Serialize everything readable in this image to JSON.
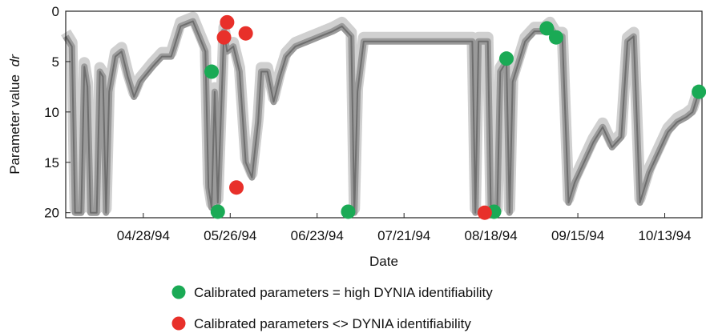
{
  "chart_data": {
    "type": "scatter",
    "xlabel": "Date",
    "ylabel": "Parameter value",
    "ylabel_symbol": "dr",
    "x_range": [
      "1994-04-03",
      "1994-10-25"
    ],
    "y_range": [
      0,
      20.5
    ],
    "y_inverted": true,
    "x_ticks": [
      {
        "date": "1994-04-28",
        "label": "04/28/94"
      },
      {
        "date": "1994-05-26",
        "label": "05/26/94"
      },
      {
        "date": "1994-06-23",
        "label": "06/23/94"
      },
      {
        "date": "1994-07-21",
        "label": "07/21/94"
      },
      {
        "date": "1994-08-18",
        "label": "08/18/94"
      },
      {
        "date": "1994-09-15",
        "label": "09/15/94"
      },
      {
        "date": "1994-10-13",
        "label": "10/13/94"
      }
    ],
    "y_ticks": [
      0,
      5,
      10,
      15,
      20
    ],
    "identifiability_band": {
      "description": "DYNIA identifiability shading (gray band)",
      "color": "#6e6e6e",
      "points": [
        [
          "1994-04-03",
          2.5
        ],
        [
          "1994-04-05",
          3.5
        ],
        [
          "1994-04-06",
          20.0
        ],
        [
          "1994-04-08",
          20.0
        ],
        [
          "1994-04-09",
          5.5
        ],
        [
          "1994-04-10",
          7.5
        ],
        [
          "1994-04-11",
          20.0
        ],
        [
          "1994-04-13",
          20.0
        ],
        [
          "1994-04-14",
          6.0
        ],
        [
          "1994-04-15",
          6.5
        ],
        [
          "1994-04-16",
          20.0
        ],
        [
          "1994-04-17",
          8.0
        ],
        [
          "1994-04-19",
          4.5
        ],
        [
          "1994-04-21",
          4.0
        ],
        [
          "1994-04-23",
          6.5
        ],
        [
          "1994-04-25",
          8.5
        ],
        [
          "1994-04-27",
          7.0
        ],
        [
          "1994-05-01",
          5.5
        ],
        [
          "1994-05-04",
          4.5
        ],
        [
          "1994-05-07",
          4.5
        ],
        [
          "1994-05-10",
          1.5
        ],
        [
          "1994-05-14",
          1.0
        ],
        [
          "1994-05-18",
          4.0
        ],
        [
          "1994-05-19",
          17.5
        ],
        [
          "1994-05-20",
          19.5
        ],
        [
          "1994-05-21",
          8.0
        ],
        [
          "1994-05-22",
          19.0
        ],
        [
          "1994-05-24",
          2.0
        ],
        [
          "1994-05-25",
          4.0
        ],
        [
          "1994-05-27",
          3.5
        ],
        [
          "1994-05-29",
          6.0
        ],
        [
          "1994-05-31",
          15.0
        ],
        [
          "1994-06-02",
          16.5
        ],
        [
          "1994-06-04",
          11.0
        ],
        [
          "1994-06-05",
          6.0
        ],
        [
          "1994-06-07",
          6.0
        ],
        [
          "1994-06-09",
          9.0
        ],
        [
          "1994-06-11",
          6.5
        ],
        [
          "1994-06-13",
          4.5
        ],
        [
          "1994-06-16",
          3.5
        ],
        [
          "1994-06-20",
          3.0
        ],
        [
          "1994-06-24",
          2.5
        ],
        [
          "1994-06-28",
          2.0
        ],
        [
          "1994-07-01",
          1.5
        ],
        [
          "1994-07-04",
          2.5
        ],
        [
          "1994-07-05",
          20.0
        ],
        [
          "1994-07-06",
          8.0
        ],
        [
          "1994-07-08",
          3.0
        ],
        [
          "1994-07-12",
          3.0
        ],
        [
          "1994-07-20",
          3.0
        ],
        [
          "1994-07-31",
          3.0
        ],
        [
          "1994-08-08",
          3.0
        ],
        [
          "1994-08-12",
          3.0
        ],
        [
          "1994-08-13",
          20.0
        ],
        [
          "1994-08-14",
          3.0
        ],
        [
          "1994-08-17",
          3.0
        ],
        [
          "1994-08-18",
          20.0
        ],
        [
          "1994-08-20",
          20.0
        ],
        [
          "1994-08-21",
          6.0
        ],
        [
          "1994-08-23",
          5.0
        ],
        [
          "1994-08-24",
          20.0
        ],
        [
          "1994-08-25",
          7.0
        ],
        [
          "1994-08-29",
          3.0
        ],
        [
          "1994-09-01",
          2.0
        ],
        [
          "1994-09-04",
          2.0
        ],
        [
          "1994-09-06",
          1.5
        ],
        [
          "1994-09-08",
          2.5
        ],
        [
          "1994-09-10",
          2.5
        ],
        [
          "1994-09-12",
          19.0
        ],
        [
          "1994-09-14",
          17.0
        ],
        [
          "1994-09-17",
          15.0
        ],
        [
          "1994-09-20",
          13.0
        ],
        [
          "1994-09-23",
          11.5
        ],
        [
          "1994-09-26",
          13.5
        ],
        [
          "1994-09-29",
          12.5
        ],
        [
          "1994-10-01",
          3.0
        ],
        [
          "1994-10-03",
          2.5
        ],
        [
          "1994-10-05",
          19.0
        ],
        [
          "1994-10-08",
          16.0
        ],
        [
          "1994-10-11",
          14.0
        ],
        [
          "1994-10-14",
          12.0
        ],
        [
          "1994-10-17",
          11.0
        ],
        [
          "1994-10-20",
          10.5
        ],
        [
          "1994-10-22",
          10.0
        ],
        [
          "1994-10-24",
          8.0
        ]
      ]
    },
    "series": [
      {
        "name": "Calibrated parameters = high DYNIA identifiability",
        "color": "#1aaa55",
        "points": [
          {
            "x": "1994-05-20",
            "y": 6.0
          },
          {
            "x": "1994-05-22",
            "y": 19.9
          },
          {
            "x": "1994-07-03",
            "y": 19.9
          },
          {
            "x": "1994-08-19",
            "y": 19.9
          },
          {
            "x": "1994-08-23",
            "y": 4.7
          },
          {
            "x": "1994-09-05",
            "y": 1.7
          },
          {
            "x": "1994-09-08",
            "y": 2.6
          },
          {
            "x": "1994-10-24",
            "y": 8.0
          }
        ]
      },
      {
        "name": "Calibrated parameters <> DYNIA identifiability",
        "color": "#e8302a",
        "points": [
          {
            "x": "1994-05-24",
            "y": 2.6
          },
          {
            "x": "1994-05-25",
            "y": 1.1
          },
          {
            "x": "1994-05-28",
            "y": 17.5
          },
          {
            "x": "1994-05-31",
            "y": 2.2
          },
          {
            "x": "1994-08-16",
            "y": 20.0
          }
        ]
      }
    ]
  }
}
